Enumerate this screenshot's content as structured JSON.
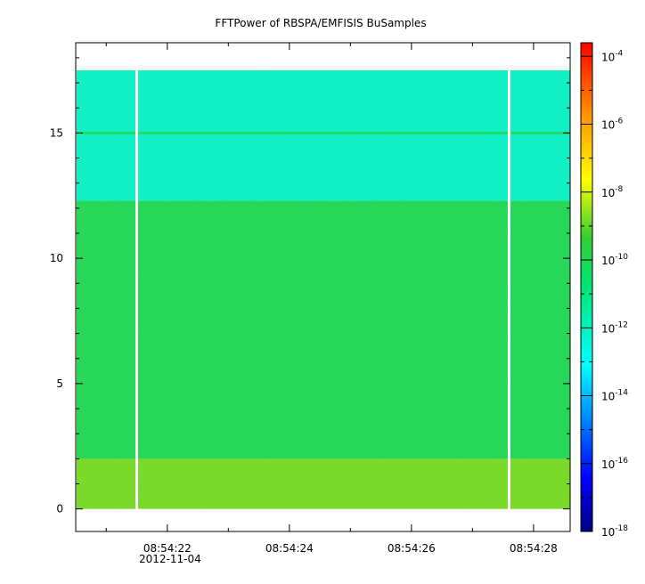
{
  "chart_data": {
    "type": "heatmap",
    "title": "FFTPower of RBSPA/EMFISIS  BuSamples",
    "xlabel": "",
    "ylabel": "",
    "x_tick_labels": [
      "08:54:22",
      "08:54:24",
      "08:54:26",
      "08:54:28"
    ],
    "x_date_label": "2012-11-04",
    "x_range_seconds": [
      "08:54:20.5",
      "08:54:28.6"
    ],
    "y_ticks": [
      0,
      5,
      10,
      15
    ],
    "ylim": [
      -0.9,
      18.6
    ],
    "data_y_range": [
      0,
      17.5
    ],
    "gaps": [
      "08:54:21.5",
      "08:54:27.6"
    ],
    "colorbar": {
      "scale": "log",
      "range": [
        "1e-18",
        "1e-3.6"
      ],
      "tick_exponents": [
        "-4",
        "-6",
        "-8",
        "-10",
        "-12",
        "-14",
        "-16",
        "-18"
      ],
      "tick_values": [
        -4,
        -6,
        -8,
        -10,
        -12,
        -14,
        -16,
        -18
      ]
    },
    "bands": [
      {
        "y_from": 0,
        "y_to": 2,
        "log_power": -8.8
      },
      {
        "y_from": 2,
        "y_to": 12.3,
        "log_power": -10.1
      },
      {
        "y_from": 12.3,
        "y_to": 17.5,
        "log_power": -12.3
      },
      {
        "y_from": 14.95,
        "y_to": 15.05,
        "log_power": -10.3
      }
    ],
    "grid": false,
    "legend": "colorbar-right"
  }
}
